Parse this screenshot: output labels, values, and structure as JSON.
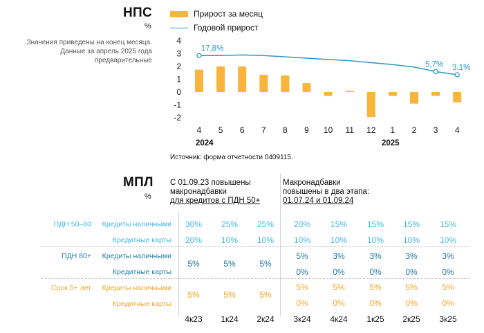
{
  "nps": {
    "title": "НПС",
    "unit": "%",
    "note": [
      "Значения приведены на конец месяца.",
      "Данные за апрель 2025 года",
      "предварительные"
    ],
    "legend": {
      "bar": "Прирост за месяц",
      "line": "Годовой прирост"
    },
    "source": "Источник: форма отчетности 0409115.",
    "year_labels": [
      "2024",
      "2025"
    ]
  },
  "chart_data": {
    "type": "bar+line",
    "categories": [
      "4",
      "5",
      "6",
      "7",
      "8",
      "9",
      "10",
      "11",
      "12",
      "1",
      "2",
      "3",
      "4"
    ],
    "series": [
      {
        "name": "Прирост за месяц",
        "type": "bar",
        "values": [
          1.75,
          2.0,
          2.0,
          1.35,
          1.3,
          0.7,
          -0.3,
          0.1,
          -1.95,
          -0.3,
          -0.9,
          -0.3,
          -0.8
        ]
      },
      {
        "name": "Годовой прирост",
        "type": "line",
        "values": [
          2.85,
          2.85,
          2.9,
          2.85,
          2.75,
          2.65,
          2.55,
          2.45,
          2.3,
          2.15,
          1.95,
          1.6,
          1.35
        ]
      }
    ],
    "line_labels": [
      {
        "index": 0,
        "text": "17,8%"
      },
      {
        "index": 11,
        "text": "5,7%"
      },
      {
        "index": 12,
        "text": "3,1%"
      }
    ],
    "ylim": [
      -2,
      4
    ],
    "yticks": [
      "4",
      "3",
      "2",
      "1",
      "0",
      "-1",
      "-2"
    ],
    "colors": {
      "bar": "#f8b43b",
      "line": "#2a99c2"
    }
  },
  "mpl": {
    "title": "МПЛ",
    "unit": "%",
    "header_left": [
      "С 01.09.23 повышены",
      "макронадбавки",
      "для кредитов с ПДН 50+"
    ],
    "header_right": [
      "Макронадбавки",
      "повышены в два этапа:",
      "01.07.24 и 01.09.24"
    ],
    "groups": [
      {
        "label": "ПДН 50–80",
        "rows": [
          {
            "label": "Кредиты наличными",
            "values": [
              "30%",
              "25%",
              "25%",
              "20%",
              "15%",
              "15%",
              "15%",
              "15%"
            ]
          },
          {
            "label": "Кредитные карты",
            "values": [
              "20%",
              "10%",
              "10%",
              "10%",
              "10%",
              "10%",
              "10%",
              "10%"
            ]
          }
        ]
      },
      {
        "label": "ПДН 80+",
        "rows": [
          {
            "label": "Кредиты наличными",
            "values": [
              "5%",
              "5%",
              "5%",
              "5%",
              "3%",
              "3%",
              "3%",
              "3%"
            ]
          },
          {
            "label": "Кредитные карты",
            "values": [
              "",
              "",
              "",
              "0%",
              "0%",
              "0%",
              "0%",
              "0%"
            ]
          }
        ]
      },
      {
        "label": "Срок 5+ лет",
        "rows": [
          {
            "label": "Кредиты наличными",
            "values": [
              "5%",
              "5%",
              "5%",
              "5%",
              "5%",
              "5%",
              "5%",
              "5%"
            ]
          },
          {
            "label": "Кредитные карты",
            "values": [
              "",
              "",
              "",
              "0%",
              "0%",
              "0%",
              "0%",
              "0%"
            ]
          }
        ]
      }
    ],
    "quarters": [
      "4к23",
      "1к24",
      "2к24",
      "3к24",
      "4к24",
      "1к25",
      "2к25",
      "3к25"
    ]
  }
}
